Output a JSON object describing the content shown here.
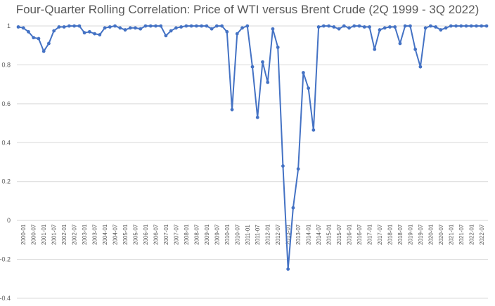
{
  "chart_data": {
    "type": "line",
    "title": "Four-Quarter Rolling Correlation: Price of WTI versus Brent Crude (2Q 1999 - 3Q 2022)",
    "xlabel": "",
    "ylabel": "",
    "ylim": [
      -0.4,
      1.0
    ],
    "y_ticks": [
      "1",
      "0.8",
      "0.6",
      "0.4",
      "0.2",
      "0",
      "-0.2",
      "-0.4"
    ],
    "y_tick_values": [
      1,
      0.8,
      0.6,
      0.4,
      0.2,
      0,
      -0.2,
      -0.4
    ],
    "grid": "horizontal",
    "legend": "none",
    "line_color": "#4472C4",
    "x_tick_labels": [
      "2000-01",
      "2000-07",
      "2001-01",
      "2001-07",
      "2002-01",
      "2002-07",
      "2003-01",
      "2003-07",
      "2004-01",
      "2004-07",
      "2005-01",
      "2005-07",
      "2006-01",
      "2006-07",
      "2007-01",
      "2007-07",
      "2008-01",
      "2008-07",
      "2009-01",
      "2009-07",
      "2010-01",
      "2010-07",
      "2011-01",
      "2011-07",
      "2012-01",
      "2012-07",
      "2013-01",
      "2013-07",
      "2014-01",
      "2014-07",
      "2015-01",
      "2015-07",
      "2016-01",
      "2016-07",
      "2017-01",
      "2017-07",
      "2018-01",
      "2018-07",
      "2019-01",
      "2019-07",
      "2020-01",
      "2020-07",
      "2021-01",
      "2021-07",
      "2022-01",
      "2022-07"
    ],
    "series": [
      {
        "values": [
          0.995,
          0.99,
          0.97,
          0.94,
          0.935,
          0.87,
          0.91,
          0.975,
          0.995,
          0.995,
          1.0,
          1.0,
          1.0,
          0.965,
          0.97,
          0.96,
          0.955,
          0.99,
          0.995,
          1.0,
          0.99,
          0.98,
          0.99,
          0.99,
          0.985,
          1.0,
          1.0,
          1.0,
          1.0,
          0.95,
          0.975,
          0.99,
          0.995,
          1.0,
          1.0,
          1.0,
          1.0,
          1.0,
          0.985,
          1.0,
          1.0,
          0.97,
          0.57,
          0.96,
          0.99,
          1.0,
          0.79,
          0.53,
          0.815,
          0.71,
          0.985,
          0.89,
          0.28,
          -0.25,
          0.065,
          0.265,
          0.76,
          0.68,
          0.465,
          0.995,
          1.0,
          1.0,
          0.995,
          0.985,
          1.0,
          0.99,
          1.0,
          1.0,
          0.995,
          0.995,
          0.88,
          0.98,
          0.99,
          0.995,
          0.995,
          0.91,
          1.0,
          1.0,
          0.88,
          0.79,
          0.99,
          1.0,
          0.995,
          0.98,
          0.99,
          1.0,
          1.0,
          1.0,
          1.0,
          1.0,
          1.0,
          1.0,
          1.0
        ]
      }
    ]
  }
}
